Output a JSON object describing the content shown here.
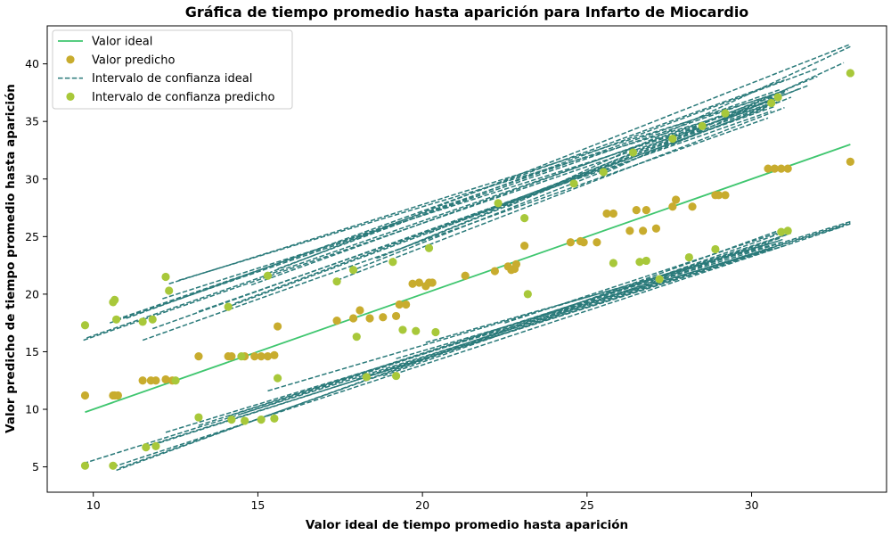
{
  "chart_data": {
    "type": "scatter",
    "title": "Gráfica de tiempo promedio hasta aparición para Infarto de Miocardio",
    "xlabel": "Valor ideal de tiempo promedio hasta aparición",
    "ylabel": "Valor predicho de tiempo promedio hasta aparición",
    "xlim": [
      8.6,
      34.1
    ],
    "ylim": [
      2.8,
      43.3
    ],
    "xticks": [
      10,
      15,
      20,
      25,
      30
    ],
    "yticks": [
      5,
      10,
      15,
      20,
      25,
      30,
      35,
      40
    ],
    "grid": false,
    "legend_position": "top-left",
    "colors": {
      "ideal_line": "#3fc66f",
      "predicted": "#c8ac2e",
      "ci_ideal": "#2a7a7a",
      "ci_predicted": "#a8c83a"
    },
    "series": [
      {
        "name": "Valor ideal",
        "kind": "line",
        "x": [
          9.75,
          33.0
        ],
        "y": [
          9.75,
          33.0
        ]
      },
      {
        "name": "Valor predicho",
        "kind": "scatter",
        "x": [
          9.75,
          10.6,
          10.65,
          10.75,
          11.5,
          11.75,
          11.9,
          12.2,
          12.4,
          13.2,
          14.1,
          14.2,
          14.6,
          14.9,
          15.1,
          15.3,
          15.5,
          15.6,
          17.4,
          17.9,
          18.1,
          18.4,
          18.8,
          19.2,
          19.3,
          19.5,
          19.7,
          19.9,
          20.1,
          20.2,
          20.3,
          21.3,
          22.2,
          22.6,
          22.7,
          22.8,
          22.85,
          23.1,
          24.5,
          24.8,
          24.9,
          25.3,
          25.6,
          25.8,
          26.3,
          26.5,
          26.7,
          26.8,
          27.1,
          27.6,
          27.7,
          28.2,
          28.9,
          29.0,
          29.2,
          30.5,
          30.7,
          30.9,
          31.1,
          33.0
        ],
        "y": [
          11.2,
          11.2,
          11.2,
          11.2,
          12.5,
          12.5,
          12.5,
          12.6,
          12.5,
          14.6,
          14.6,
          14.6,
          14.6,
          14.6,
          14.6,
          14.6,
          14.7,
          17.2,
          17.7,
          17.9,
          18.6,
          17.9,
          18.0,
          18.1,
          19.1,
          19.1,
          20.9,
          21.0,
          20.7,
          21.0,
          21.0,
          21.6,
          22.0,
          22.4,
          22.1,
          22.2,
          22.6,
          24.2,
          24.5,
          24.6,
          24.5,
          24.5,
          27.0,
          27.0,
          25.5,
          27.3,
          25.5,
          27.3,
          25.7,
          27.6,
          28.2,
          27.6,
          28.6,
          28.6,
          28.6,
          30.9,
          30.9,
          30.9,
          30.9,
          31.5
        ]
      },
      {
        "name": "Intervalo de confianza ideal",
        "kind": "dashed-lines",
        "segments": [
          [
            9.7,
            16.0,
            30.5,
            36.5
          ],
          [
            9.8,
            16.2,
            30.6,
            36.9
          ],
          [
            10.5,
            17.5,
            30.8,
            37.5
          ],
          [
            10.7,
            17.8,
            30.9,
            37.8
          ],
          [
            11.0,
            17.9,
            31.0,
            38.6
          ],
          [
            11.5,
            16.0,
            30.5,
            35.3
          ],
          [
            11.8,
            17.0,
            30.7,
            36.3
          ],
          [
            12.1,
            19.6,
            30.8,
            36.7
          ],
          [
            12.3,
            20.9,
            31.1,
            37.7
          ],
          [
            12.6,
            21.2,
            30.9,
            37.0
          ],
          [
            13.2,
            18.5,
            30.6,
            35.9
          ],
          [
            14.0,
            18.8,
            30.4,
            36.1
          ],
          [
            14.3,
            19.2,
            30.7,
            36.6
          ],
          [
            14.8,
            20.8,
            30.9,
            37.4
          ],
          [
            15.3,
            21.8,
            33.0,
            41.7
          ],
          [
            15.6,
            22.2,
            32.0,
            39.6
          ],
          [
            17.4,
            21.2,
            31.0,
            36.2
          ],
          [
            18.0,
            22.2,
            31.2,
            37.1
          ],
          [
            18.6,
            23.1,
            31.5,
            37.9
          ],
          [
            19.3,
            23.9,
            32.0,
            38.9
          ],
          [
            20.2,
            25.3,
            31.7,
            38.1
          ],
          [
            22.6,
            27.6,
            33.0,
            41.5
          ],
          [
            25.6,
            30.6,
            32.8,
            40.1
          ],
          [
            27.6,
            33.0,
            31.0,
            37.5
          ],
          [
            9.7,
            5.3,
            33.0,
            26.2
          ],
          [
            10.6,
            5.0,
            32.8,
            25.9
          ],
          [
            10.7,
            4.7,
            31.0,
            25.7
          ],
          [
            10.8,
            4.9,
            30.8,
            25.2
          ],
          [
            11.5,
            6.7,
            31.1,
            24.3
          ],
          [
            11.8,
            6.9,
            30.5,
            23.9
          ],
          [
            12.2,
            8.0,
            33.0,
            26.1
          ],
          [
            13.2,
            8.6,
            30.9,
            24.9
          ],
          [
            14.1,
            9.4,
            30.6,
            24.5
          ],
          [
            14.5,
            9.6,
            31.2,
            25.3
          ],
          [
            15.3,
            11.6,
            30.8,
            24.6
          ],
          [
            17.4,
            12.0,
            30.6,
            23.9
          ],
          [
            18.0,
            12.6,
            31.0,
            24.8
          ],
          [
            18.8,
            12.9,
            31.1,
            25.2
          ],
          [
            19.2,
            14.4,
            30.7,
            24.0
          ],
          [
            20.1,
            15.8,
            30.9,
            24.5
          ],
          [
            22.5,
            17.5,
            31.1,
            25.6
          ],
          [
            25.5,
            19.7,
            33.0,
            26.3
          ]
        ]
      },
      {
        "name": "Intervalo de confianza predicho",
        "kind": "scatter",
        "x": [
          9.75,
          9.75,
          10.6,
          10.6,
          10.65,
          10.7,
          11.5,
          11.6,
          11.8,
          11.9,
          12.2,
          12.3,
          12.5,
          13.2,
          14.1,
          14.2,
          14.5,
          14.6,
          15.1,
          15.3,
          15.5,
          15.6,
          17.4,
          17.9,
          18.0,
          18.3,
          19.1,
          19.2,
          19.4,
          19.8,
          20.2,
          20.4,
          22.3,
          23.1,
          23.2,
          24.6,
          25.5,
          25.8,
          26.4,
          26.6,
          26.8,
          27.2,
          27.6,
          28.1,
          28.5,
          28.9,
          29.2,
          30.6,
          30.8,
          30.9,
          31.1,
          33.0
        ],
        "y": [
          17.3,
          5.1,
          19.3,
          5.1,
          19.5,
          17.8,
          17.6,
          6.7,
          17.8,
          6.8,
          21.5,
          20.3,
          12.5,
          9.3,
          18.9,
          9.1,
          14.6,
          9.0,
          9.1,
          21.6,
          9.2,
          12.7,
          21.1,
          22.1,
          16.3,
          12.8,
          22.8,
          12.9,
          16.9,
          16.8,
          24.0,
          16.7,
          27.9,
          26.6,
          20.0,
          29.6,
          30.6,
          22.7,
          32.3,
          22.8,
          22.9,
          21.3,
          33.5,
          23.2,
          34.6,
          23.9,
          35.7,
          36.6,
          37.1,
          25.4,
          25.5,
          39.2
        ]
      }
    ]
  }
}
